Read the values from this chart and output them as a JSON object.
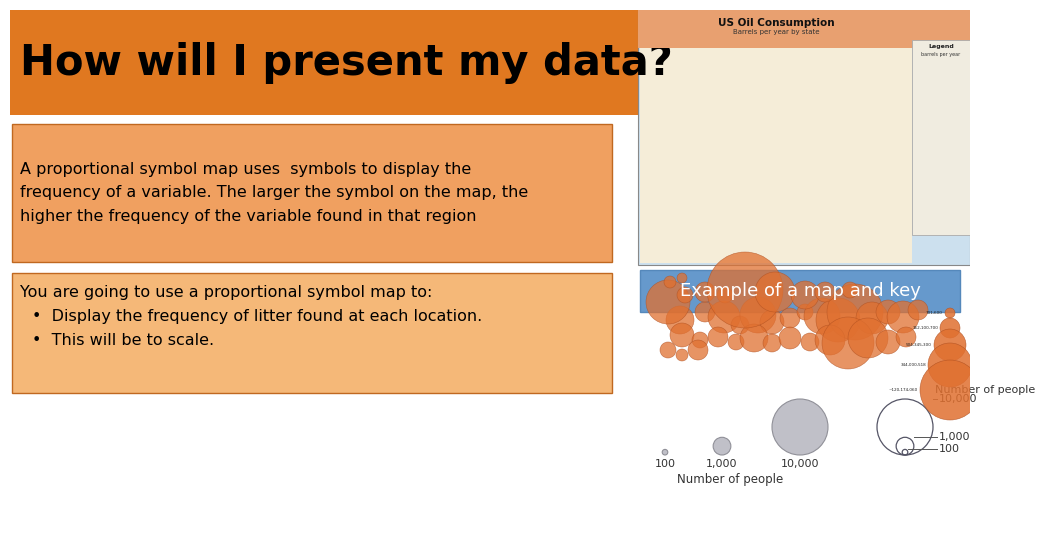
{
  "background_color": "#ffffff",
  "title_box_color": "#e07820",
  "title_text": "How will I present my data?",
  "title_text_color": "#000000",
  "title_fontsize": 30,
  "desc_box_color": "#f0a060",
  "desc_box_edge": "#c06820",
  "desc_text": "A proportional symbol map uses  symbols to display the\nfrequency of a variable. The larger the symbol on the map, the\nhigher the frequency of the variable found in that region",
  "desc_fontsize": 11.5,
  "bullet_box_color": "#f5b878",
  "bullet_box_edge": "#c06820",
  "bullet_title": "You are going to use a proportional symbol map to:",
  "bullet_points": [
    "Display the frequency of litter found at each location.",
    "This will be to scale."
  ],
  "bullet_fontsize": 11.5,
  "example_box_color": "#6699cc",
  "example_box_edge": "#5588bb",
  "example_text": "Example of a map and key",
  "example_text_color": "#ffffff",
  "example_fontsize": 13,
  "circle_color": "#c0c0c8",
  "circle_edge_color": "#909098",
  "proportional_values": [
    100,
    1000,
    10000
  ],
  "proportional_labels": [
    "100",
    "1,000",
    "10,000"
  ],
  "xlabel_text": "Number of people",
  "nested_values": [
    10000,
    1000,
    100
  ],
  "nested_labels": [
    "10,000",
    "1,000",
    "100"
  ],
  "map_bg_color": "#cce0ee",
  "map_land_color": "#f5edd8",
  "map_title": "US Oil Consumption",
  "map_subtitle": "Barrels per year by state",
  "map_circles": [
    [
      670,
      230,
      14
    ],
    [
      695,
      238,
      10
    ],
    [
      714,
      233,
      16
    ],
    [
      730,
      225,
      9
    ],
    [
      748,
      235,
      18
    ],
    [
      762,
      228,
      12
    ],
    [
      780,
      232,
      10
    ],
    [
      795,
      238,
      8
    ],
    [
      812,
      234,
      18
    ],
    [
      828,
      230,
      22
    ],
    [
      845,
      238,
      28
    ],
    [
      862,
      232,
      16
    ],
    [
      878,
      238,
      12
    ],
    [
      893,
      233,
      16
    ],
    [
      908,
      240,
      10
    ],
    [
      672,
      215,
      12
    ],
    [
      690,
      210,
      8
    ],
    [
      708,
      213,
      10
    ],
    [
      726,
      208,
      8
    ],
    [
      744,
      212,
      14
    ],
    [
      762,
      207,
      9
    ],
    [
      780,
      212,
      11
    ],
    [
      800,
      208,
      9
    ],
    [
      820,
      210,
      15
    ],
    [
      838,
      207,
      26
    ],
    [
      858,
      212,
      20
    ],
    [
      878,
      208,
      12
    ],
    [
      896,
      213,
      10
    ],
    [
      658,
      248,
      22
    ],
    [
      675,
      255,
      8
    ],
    [
      695,
      258,
      10
    ],
    [
      715,
      255,
      8
    ],
    [
      735,
      260,
      38
    ],
    [
      765,
      258,
      20
    ],
    [
      795,
      255,
      14
    ],
    [
      815,
      258,
      10
    ],
    [
      840,
      260,
      8
    ],
    [
      658,
      200,
      8
    ],
    [
      672,
      195,
      6
    ],
    [
      688,
      200,
      10
    ],
    [
      660,
      268,
      6
    ],
    [
      672,
      272,
      5
    ]
  ],
  "legend_circles": [
    [
      940,
      237,
      5
    ],
    [
      940,
      222,
      10
    ],
    [
      940,
      205,
      16
    ],
    [
      940,
      185,
      22
    ],
    [
      940,
      160,
      30
    ]
  ],
  "legend_labels": [
    "701,600",
    "162,100,700",
    "504,345,300",
    "344,000,518",
    "~120,174,060"
  ]
}
